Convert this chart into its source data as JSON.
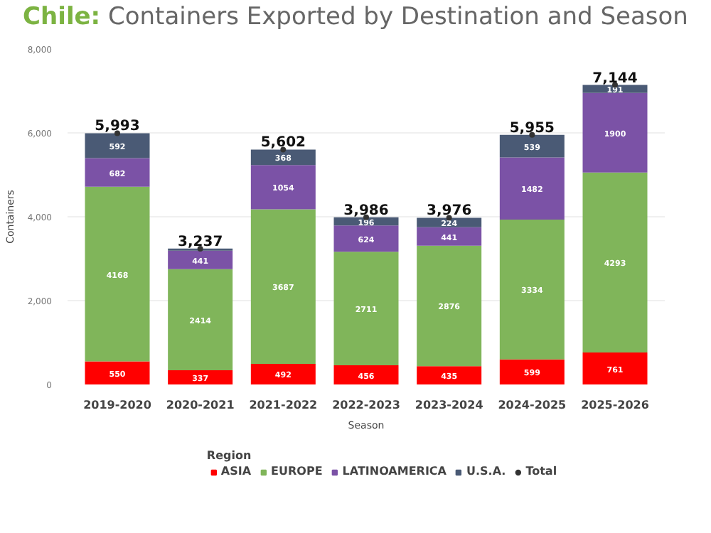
{
  "chart_data": {
    "type": "bar",
    "stacked": true,
    "title": "Chile: Containers Exported by Destination and Season",
    "xlabel": "Season",
    "ylabel": "Containers",
    "legend_title": "Region",
    "legend": "bottom",
    "grid": "y",
    "categories": [
      "2019-2020",
      "2020-2021",
      "2021-2022",
      "2022-2023",
      "2023-2024",
      "2024-2025",
      "2025-2026"
    ],
    "ylim": [
      0,
      8000
    ],
    "yticks": [
      {
        "value": 0,
        "label": "0"
      },
      {
        "value": 2000,
        "label": "2,000"
      },
      {
        "value": 4000,
        "label": "4,000"
      },
      {
        "value": 6000,
        "label": "6,000"
      },
      {
        "value": 8000,
        "label": "8,000"
      }
    ],
    "series": [
      {
        "name": "ASIA",
        "color": "#ff0000",
        "values": [
          550,
          337,
          492,
          456,
          435,
          599,
          761
        ],
        "value_labels": [
          "550",
          "337",
          "492",
          "456",
          "435",
          "599",
          "761"
        ]
      },
      {
        "name": "EUROPE",
        "color": "#80b55a",
        "values": [
          4168,
          2414,
          3687,
          2711,
          2876,
          3334,
          4293
        ],
        "value_labels": [
          "4168",
          "2414",
          "3687",
          "2711",
          "2876",
          "3334",
          "4293"
        ]
      },
      {
        "name": "LATINOAMERICA",
        "color": "#7b52a6",
        "values": [
          682,
          441,
          1054,
          624,
          441,
          1482,
          1900
        ],
        "value_labels": [
          "682",
          "441",
          "1054",
          "624",
          "441",
          "1482",
          "1900"
        ]
      },
      {
        "name": "U.S.A.",
        "color": "#4a5a75",
        "values": [
          592,
          50,
          368,
          196,
          224,
          539,
          191
        ],
        "value_labels": [
          "592",
          null,
          "368",
          "196",
          "224",
          "539",
          "191"
        ]
      },
      {
        "name": "Total",
        "type": "scatter",
        "marker": "circle",
        "color": "#333333",
        "values": [
          5993,
          3237,
          5602,
          3986,
          3976,
          5955,
          7144
        ],
        "value_labels": [
          "5,993",
          "3,237",
          "5,602",
          "3,986",
          "3,976",
          "5,955",
          "7,144"
        ]
      }
    ]
  }
}
